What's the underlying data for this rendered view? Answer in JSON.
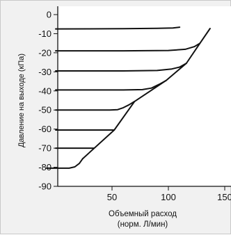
{
  "chart_data": {
    "type": "line",
    "title": "",
    "xlabel_lines": [
      "Объемный расход",
      "(норм. Л/мин)"
    ],
    "ylabel": "Давление на выходе (кПа)",
    "xlim": [
      0,
      150
    ],
    "ylim": [
      -90,
      0
    ],
    "x_ticks": [
      50,
      100,
      150
    ],
    "x_tick_labels": [
      "50",
      "100",
      "150"
    ],
    "y_ticks": [
      0,
      -10,
      -20,
      -30,
      -40,
      -50,
      -60,
      -70,
      -80,
      -90
    ],
    "y_tick_labels": [
      "0",
      "-10",
      "-20",
      "-30",
      "-40",
      "-50",
      "-60",
      "-70",
      "-80",
      "-90"
    ],
    "grid": false,
    "colors": {
      "line": "#111111",
      "background": "#f1f1f1",
      "plot_area": "#ffffff"
    },
    "series": [
      {
        "points": [
          [
            0,
            -7.5
          ],
          [
            60,
            -7.4
          ],
          [
            90,
            -7.2
          ],
          [
            104,
            -7.0
          ],
          [
            110,
            -6.6
          ]
        ]
      },
      {
        "points": [
          [
            0,
            -19
          ],
          [
            60,
            -19
          ],
          [
            100,
            -18.8
          ],
          [
            115,
            -18.2
          ],
          [
            123,
            -16.8
          ],
          [
            128,
            -15
          ]
        ]
      },
      {
        "points": [
          [
            0,
            -29.5
          ],
          [
            60,
            -29.5
          ],
          [
            90,
            -29.3
          ],
          [
            103,
            -28.5
          ],
          [
            110,
            -27.5
          ],
          [
            116,
            -25.5
          ]
        ]
      },
      {
        "points": [
          [
            0,
            -39.5
          ],
          [
            60,
            -39.5
          ],
          [
            77,
            -39.3
          ],
          [
            85,
            -38.5
          ],
          [
            92,
            -36.5
          ],
          [
            98,
            -34.5
          ]
        ]
      },
      {
        "points": [
          [
            0,
            -50
          ],
          [
            48,
            -50
          ],
          [
            55,
            -49.8
          ],
          [
            60,
            -48.8
          ],
          [
            65,
            -47.3
          ],
          [
            70,
            -45.5
          ]
        ]
      },
      {
        "points": [
          [
            0,
            -60.5
          ],
          [
            52,
            -60.5
          ]
        ]
      },
      {
        "points": [
          [
            0,
            -70
          ],
          [
            34,
            -70
          ]
        ]
      },
      {
        "points": [
          [
            -8,
            -80.5
          ],
          [
            12,
            -80.5
          ],
          [
            17,
            -79.8
          ],
          [
            21,
            -78
          ],
          [
            24,
            -75.5
          ]
        ]
      },
      {
        "points": [
          [
            24,
            -75.5
          ],
          [
            52,
            -60.5
          ],
          [
            70,
            -45.5
          ],
          [
            98,
            -34.5
          ],
          [
            116,
            -25.5
          ],
          [
            128,
            -15
          ],
          [
            137,
            -7.3
          ]
        ]
      }
    ]
  }
}
